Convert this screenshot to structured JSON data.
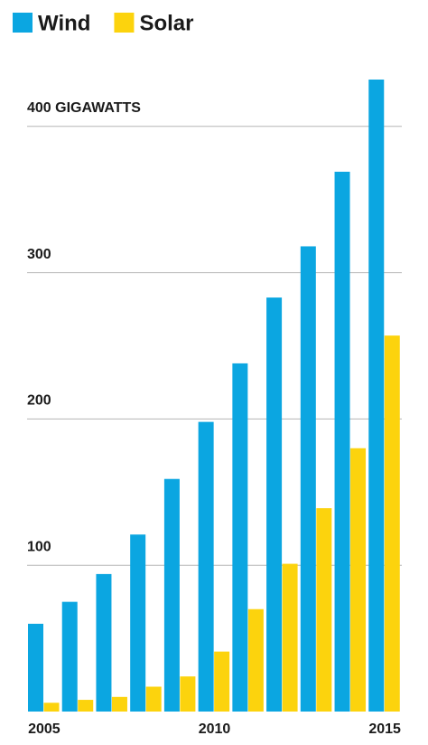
{
  "chart_data": {
    "type": "bar",
    "categories": [
      "2005",
      null,
      null,
      null,
      null,
      "2010",
      null,
      null,
      null,
      null,
      "2015"
    ],
    "series": [
      {
        "name": "Wind",
        "color": "#0ba6e1",
        "values": [
          60,
          75,
          94,
          121,
          159,
          198,
          238,
          283,
          318,
          369,
          432
        ]
      },
      {
        "name": "Solar",
        "color": "#fcd30d",
        "values": [
          6,
          8,
          10,
          17,
          24,
          41,
          70,
          101,
          139,
          180,
          257
        ]
      }
    ],
    "ylim": [
      0,
      432
    ],
    "yticks": [
      100,
      200,
      300,
      {
        "value": 400,
        "label": "400 GIGAWATTS"
      }
    ],
    "grid": true
  }
}
